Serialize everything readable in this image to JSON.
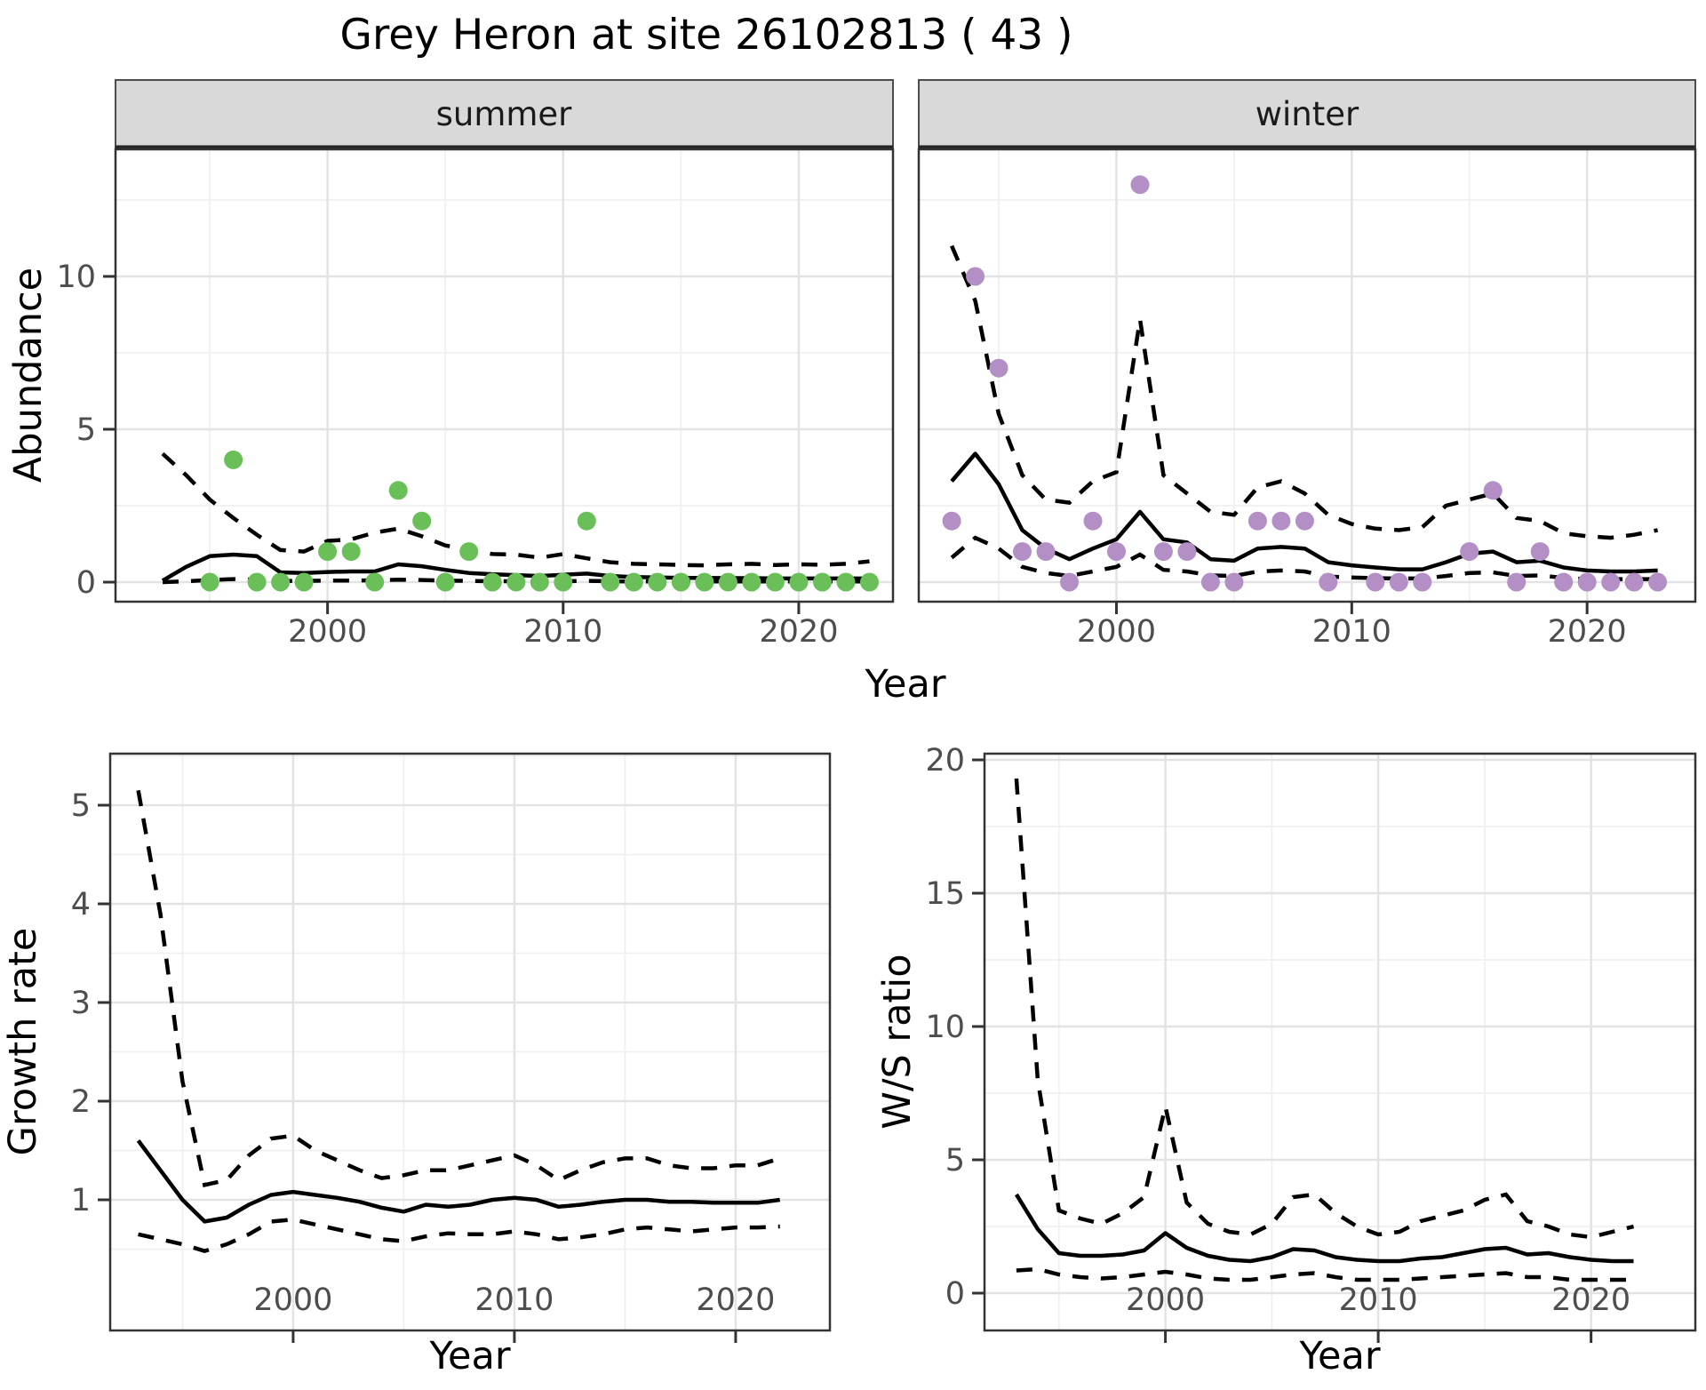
{
  "title": "Grey Heron at site 26102813 ( 43 )",
  "axes": {
    "x_label": "Year",
    "abundance_label": "Abundance",
    "growth_label": "Growth rate",
    "ws_label": "W/S ratio"
  },
  "colors": {
    "summer_point": "#6abf59",
    "winter_point": "#b38fc6",
    "fit_line": "#000000",
    "ci_line": "#000000",
    "strip_bg": "#d9d9d9",
    "strip_border": "#4d4d4d",
    "panel_border": "#333333",
    "grid_major": "#e3e3e3",
    "grid_minor": "#f0f0f0",
    "tick_text": "#4d4d4d"
  },
  "chart_data": [
    {
      "id": "summer",
      "type": "scatter",
      "title": "summer",
      "xlabel": "Year",
      "ylabel": "Abundance",
      "xlim": [
        1991,
        2024
      ],
      "ylim": [
        -0.64,
        14.16
      ],
      "x_ticks": [
        2000,
        2010,
        2020
      ],
      "x_minor": [
        1995,
        2005,
        2015
      ],
      "y_ticks": [
        0,
        5,
        10
      ],
      "y_minor": [
        2.5,
        7.5,
        12.5
      ],
      "grid": true,
      "legend": "none",
      "points": {
        "years": [
          1995,
          1996,
          1997,
          1998,
          1999,
          2000,
          2001,
          2002,
          2003,
          2004,
          2005,
          2006,
          2007,
          2008,
          2009,
          2010,
          2011,
          2012,
          2013,
          2014,
          2015,
          2016,
          2017,
          2018,
          2019,
          2020,
          2021,
          2022,
          2023
        ],
        "values": [
          0,
          4,
          0,
          0,
          0,
          1,
          1,
          0,
          3,
          2,
          0,
          1,
          0,
          0,
          0,
          0,
          2,
          0,
          0,
          0,
          0,
          0,
          0,
          0,
          0,
          0,
          0,
          0,
          0
        ]
      },
      "fit": {
        "years": [
          1993,
          1994,
          1995,
          1996,
          1997,
          1998,
          1999,
          2000,
          2001,
          2002,
          2003,
          2004,
          2005,
          2006,
          2007,
          2008,
          2009,
          2010,
          2011,
          2012,
          2013,
          2014,
          2015,
          2016,
          2017,
          2018,
          2019,
          2020,
          2021,
          2022,
          2023
        ],
        "mean": [
          0.05,
          0.5,
          0.85,
          0.9,
          0.85,
          0.32,
          0.3,
          0.33,
          0.35,
          0.35,
          0.58,
          0.52,
          0.4,
          0.3,
          0.26,
          0.23,
          0.2,
          0.24,
          0.28,
          0.2,
          0.17,
          0.15,
          0.14,
          0.14,
          0.13,
          0.13,
          0.12,
          0.12,
          0.12,
          0.12,
          0.12
        ],
        "upper": [
          4.2,
          3.5,
          2.7,
          2.1,
          1.55,
          1.05,
          1.0,
          1.35,
          1.4,
          1.62,
          1.75,
          1.5,
          1.2,
          1.05,
          0.92,
          0.9,
          0.8,
          0.92,
          0.78,
          0.65,
          0.6,
          0.58,
          0.56,
          0.55,
          0.58,
          0.6,
          0.56,
          0.58,
          0.57,
          0.6,
          0.68
        ],
        "lower": [
          0.0,
          0.03,
          0.07,
          0.1,
          0.08,
          0.04,
          0.04,
          0.05,
          0.05,
          0.06,
          0.08,
          0.07,
          0.05,
          0.04,
          0.03,
          0.03,
          0.03,
          0.03,
          0.04,
          0.03,
          0.02,
          0.02,
          0.02,
          0.02,
          0.02,
          0.02,
          0.02,
          0.02,
          0.02,
          0.02,
          0.02
        ]
      }
    },
    {
      "id": "winter",
      "type": "scatter",
      "title": "winter",
      "xlabel": "Year",
      "ylabel": "Abundance",
      "xlim": [
        1991.6,
        2024.6
      ],
      "ylim": [
        -0.64,
        14.16
      ],
      "x_ticks": [
        2000,
        2010,
        2020
      ],
      "x_minor": [
        1995,
        2005,
        2015
      ],
      "y_ticks": [
        0,
        5,
        10
      ],
      "y_minor": [
        2.5,
        7.5,
        12.5
      ],
      "grid": true,
      "legend": "none",
      "points": {
        "years": [
          1993,
          1994,
          1995,
          1996,
          1997,
          1998,
          1999,
          2000,
          2001,
          2002,
          2003,
          2004,
          2005,
          2006,
          2007,
          2008,
          2009,
          2011,
          2012,
          2013,
          2015,
          2016,
          2017,
          2018,
          2019,
          2020,
          2021,
          2022,
          2023
        ],
        "values": [
          2,
          10,
          7,
          1,
          1,
          0,
          2,
          1,
          13,
          1,
          1,
          0,
          0,
          2,
          2,
          2,
          0,
          0,
          0,
          0,
          1,
          3,
          0,
          1,
          0,
          0,
          0,
          0,
          0
        ]
      },
      "fit": {
        "years": [
          1993,
          1994,
          1995,
          1996,
          1997,
          1998,
          1999,
          2000,
          2001,
          2002,
          2003,
          2004,
          2005,
          2006,
          2007,
          2008,
          2009,
          2010,
          2011,
          2012,
          2013,
          2014,
          2015,
          2016,
          2017,
          2018,
          2019,
          2020,
          2021,
          2022,
          2023
        ],
        "mean": [
          3.3,
          4.2,
          3.2,
          1.7,
          1.1,
          0.75,
          1.1,
          1.4,
          2.3,
          1.4,
          1.3,
          0.75,
          0.7,
          1.1,
          1.15,
          1.1,
          0.65,
          0.55,
          0.48,
          0.42,
          0.42,
          0.65,
          0.93,
          1.0,
          0.65,
          0.7,
          0.48,
          0.38,
          0.35,
          0.35,
          0.38
        ],
        "upper": [
          11.0,
          9.2,
          5.5,
          3.5,
          2.7,
          2.6,
          3.3,
          3.6,
          8.6,
          3.5,
          2.9,
          2.3,
          2.2,
          3.1,
          3.3,
          2.9,
          2.2,
          1.9,
          1.75,
          1.7,
          1.8,
          2.5,
          2.7,
          2.9,
          2.1,
          2.0,
          1.6,
          1.5,
          1.45,
          1.55,
          1.7
        ],
        "lower": [
          0.8,
          1.45,
          1.1,
          0.5,
          0.3,
          0.2,
          0.35,
          0.5,
          0.9,
          0.4,
          0.35,
          0.22,
          0.2,
          0.35,
          0.38,
          0.35,
          0.18,
          0.15,
          0.13,
          0.12,
          0.12,
          0.2,
          0.3,
          0.32,
          0.2,
          0.22,
          0.14,
          0.1,
          0.1,
          0.1,
          0.1
        ]
      }
    },
    {
      "id": "growth",
      "type": "line",
      "title": "",
      "xlabel": "Year",
      "ylabel": "Growth rate",
      "xlim": [
        1991.73,
        2024.26
      ],
      "ylim": [
        -0.32,
        5.52
      ],
      "x_ticks": [
        2000,
        2010,
        2020
      ],
      "x_minor": [
        1995,
        2005,
        2015
      ],
      "y_ticks": [
        1,
        2,
        3,
        4,
        5
      ],
      "y_minor": [
        0.5,
        1.5,
        2.5,
        3.5,
        4.5,
        5.5
      ],
      "grid": true,
      "legend": "none",
      "points": {
        "years": [],
        "values": []
      },
      "fit": {
        "years": [
          1993,
          1994,
          1995,
          1996,
          1997,
          1998,
          1999,
          2000,
          2001,
          2002,
          2003,
          2004,
          2005,
          2006,
          2007,
          2008,
          2009,
          2010,
          2011,
          2012,
          2013,
          2014,
          2015,
          2016,
          2017,
          2018,
          2019,
          2020,
          2021,
          2022
        ],
        "mean": [
          1.6,
          1.3,
          1.0,
          0.78,
          0.82,
          0.95,
          1.05,
          1.08,
          1.05,
          1.02,
          0.98,
          0.92,
          0.88,
          0.95,
          0.93,
          0.95,
          1.0,
          1.02,
          1.0,
          0.93,
          0.95,
          0.98,
          1.0,
          1.0,
          0.98,
          0.98,
          0.97,
          0.97,
          0.97,
          1.0
        ],
        "upper": [
          5.15,
          3.9,
          2.2,
          1.15,
          1.2,
          1.45,
          1.62,
          1.65,
          1.5,
          1.4,
          1.3,
          1.22,
          1.25,
          1.3,
          1.3,
          1.35,
          1.4,
          1.45,
          1.35,
          1.2,
          1.3,
          1.38,
          1.42,
          1.42,
          1.35,
          1.32,
          1.32,
          1.35,
          1.35,
          1.42
        ],
        "lower": [
          0.65,
          0.6,
          0.55,
          0.48,
          0.55,
          0.65,
          0.78,
          0.8,
          0.75,
          0.7,
          0.65,
          0.6,
          0.58,
          0.63,
          0.66,
          0.65,
          0.65,
          0.68,
          0.65,
          0.6,
          0.62,
          0.65,
          0.7,
          0.72,
          0.7,
          0.68,
          0.7,
          0.72,
          0.72,
          0.73
        ]
      }
    },
    {
      "id": "ws",
      "type": "line",
      "title": "",
      "xlabel": "Year",
      "ylabel": "W/S ratio",
      "xlim": [
        1991.5,
        2024.9
      ],
      "ylim": [
        -1.4,
        20.23
      ],
      "x_ticks": [
        2000,
        2010,
        2020
      ],
      "x_minor": [
        1995,
        2005,
        2015
      ],
      "y_ticks": [
        0,
        5,
        10,
        15,
        20
      ],
      "y_minor": [
        2.5,
        7.5,
        12.5,
        17.5
      ],
      "grid": true,
      "legend": "none",
      "points": {
        "years": [],
        "values": []
      },
      "fit": {
        "years": [
          1993,
          1994,
          1995,
          1996,
          1997,
          1998,
          1999,
          2000,
          2001,
          2002,
          2003,
          2004,
          2005,
          2006,
          2007,
          2008,
          2009,
          2010,
          2011,
          2012,
          2013,
          2014,
          2015,
          2016,
          2017,
          2018,
          2019,
          2020,
          2021,
          2022
        ],
        "mean": [
          3.7,
          2.4,
          1.5,
          1.4,
          1.4,
          1.45,
          1.6,
          2.25,
          1.7,
          1.4,
          1.25,
          1.2,
          1.35,
          1.65,
          1.6,
          1.35,
          1.25,
          1.2,
          1.2,
          1.3,
          1.35,
          1.5,
          1.65,
          1.7,
          1.45,
          1.5,
          1.35,
          1.25,
          1.2,
          1.2
        ],
        "upper": [
          19.3,
          8.0,
          3.1,
          2.8,
          2.6,
          3.0,
          3.6,
          7.0,
          3.4,
          2.6,
          2.3,
          2.2,
          2.6,
          3.6,
          3.7,
          3.0,
          2.5,
          2.2,
          2.3,
          2.7,
          2.9,
          3.1,
          3.5,
          3.7,
          2.7,
          2.5,
          2.2,
          2.1,
          2.3,
          2.5
        ],
        "lower": [
          0.85,
          0.9,
          0.7,
          0.6,
          0.55,
          0.6,
          0.7,
          0.8,
          0.7,
          0.55,
          0.5,
          0.5,
          0.6,
          0.7,
          0.75,
          0.6,
          0.5,
          0.5,
          0.5,
          0.55,
          0.6,
          0.65,
          0.7,
          0.75,
          0.6,
          0.6,
          0.5,
          0.5,
          0.5,
          0.5
        ]
      }
    }
  ]
}
